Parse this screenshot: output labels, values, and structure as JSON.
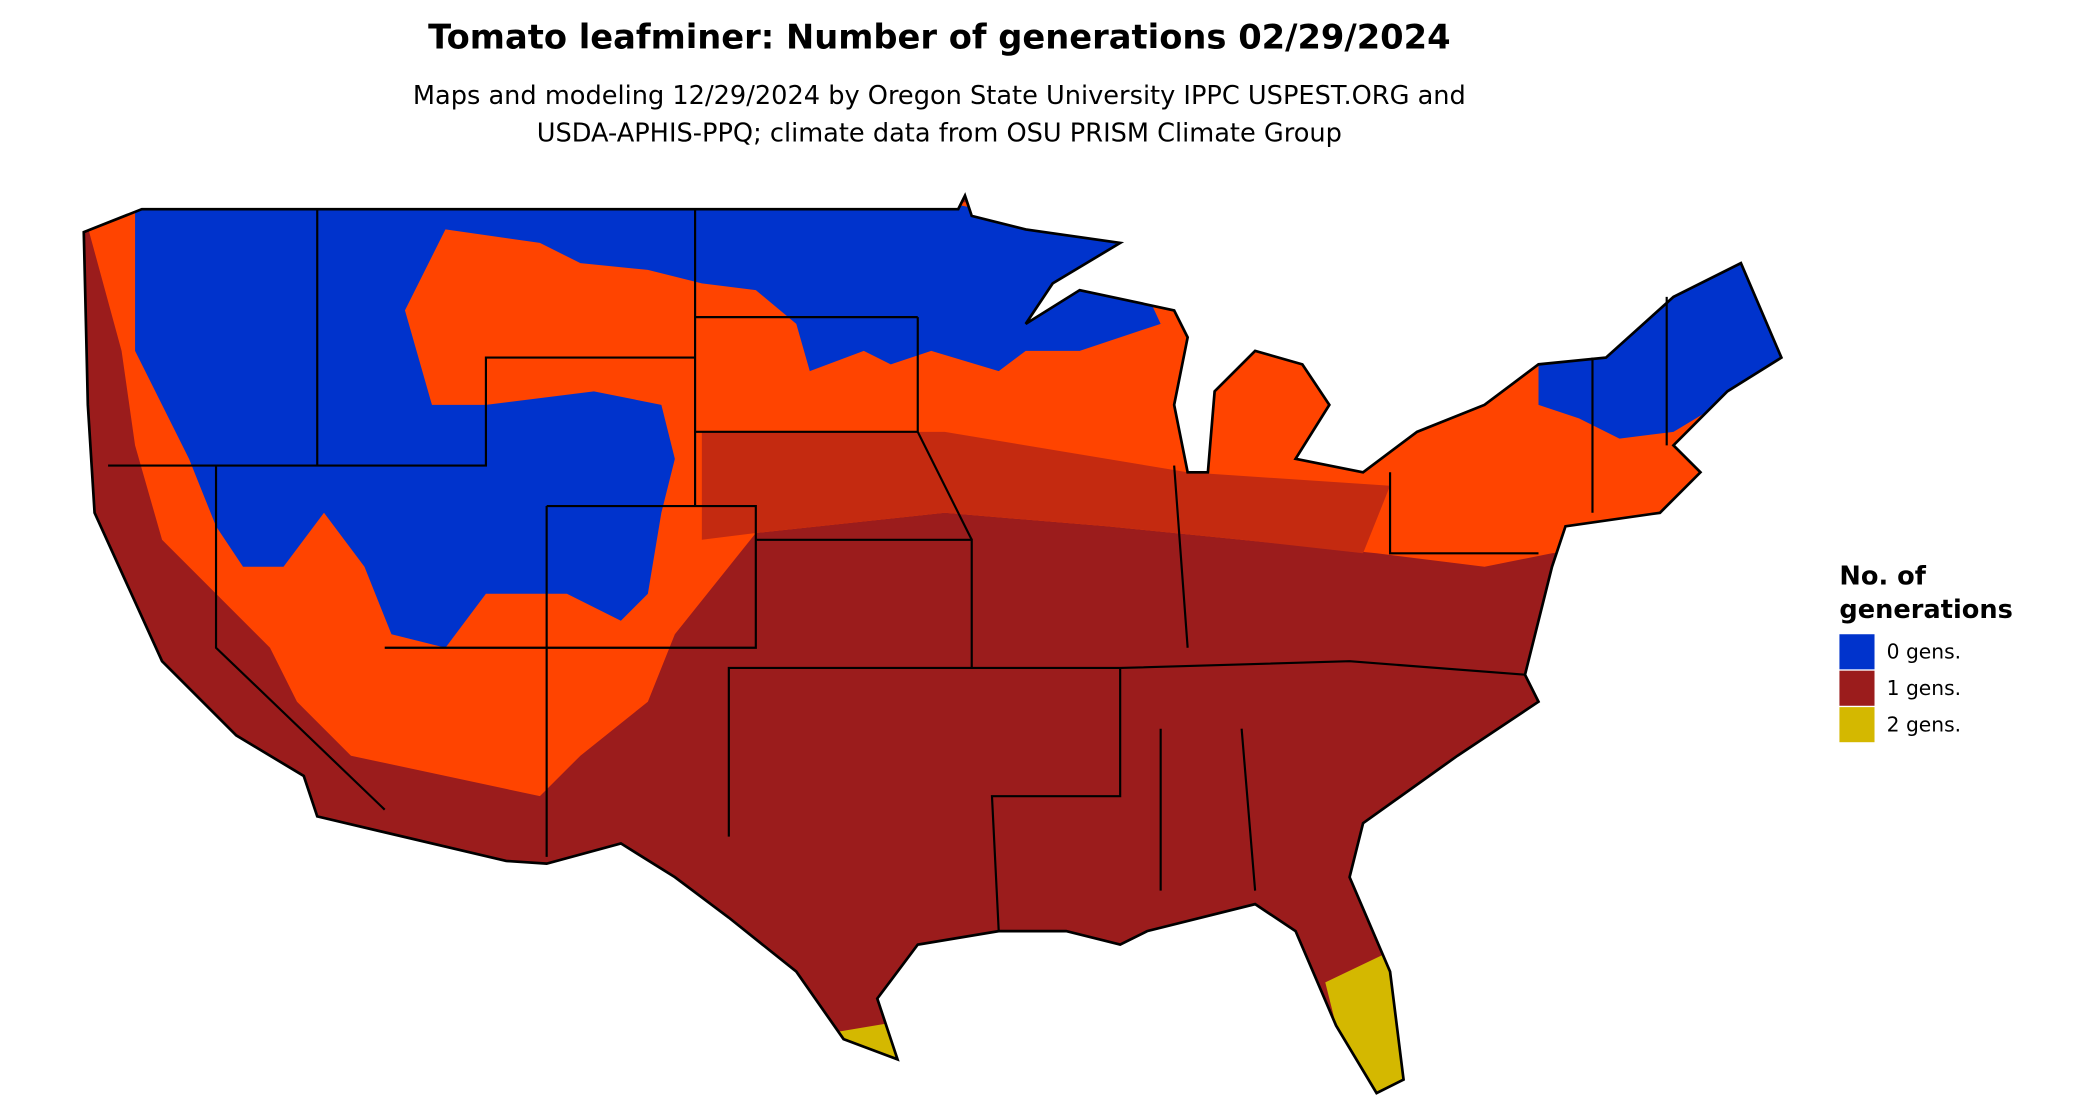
{
  "title": "Tomato leafminer: Number of generations 02/29/2024",
  "subtitle": [
    "Maps and modeling 12/29/2024 by Oregon State University IPPC USPEST.ORG and",
    "USDA-APHIS-PPQ; climate data from OSU PRISM Climate Group"
  ],
  "legend": {
    "title": [
      "No. of",
      "generations"
    ],
    "items": [
      {
        "label": "0 gens.",
        "color": "#0033cc"
      },
      {
        "label": "1 gens.",
        "color": "#9b1c1c"
      },
      {
        "label": "2 gens.",
        "color": "#d4b800"
      }
    ]
  }
}
